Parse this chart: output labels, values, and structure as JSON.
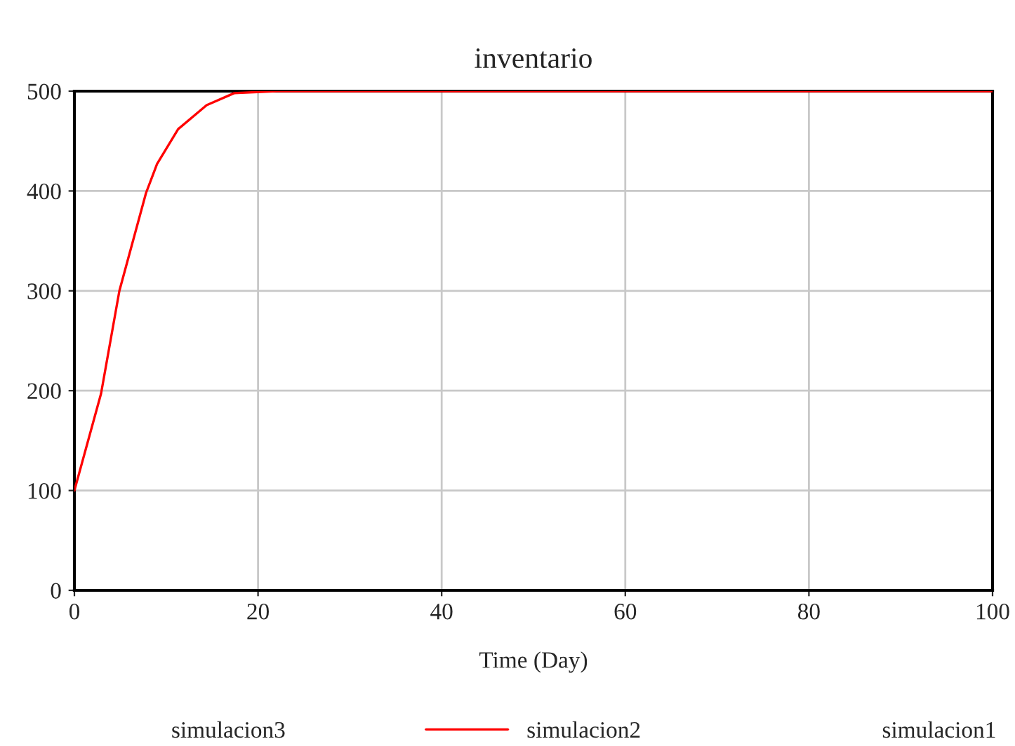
{
  "chart_data": {
    "type": "line",
    "title": "inventario",
    "xlabel": "Time (Day)",
    "x": [
      0,
      2.9,
      4.9,
      7.8,
      9,
      11.3,
      14.4,
      17.4,
      22,
      40,
      60,
      80,
      100
    ],
    "series": [
      {
        "name": "simulacion3",
        "values": [
          null,
          null,
          null,
          null,
          null,
          null,
          null,
          null,
          null,
          null,
          null,
          null,
          null
        ]
      },
      {
        "name": "simulacion2",
        "color": "#ff0000",
        "values": [
          100,
          197,
          300,
          398,
          427,
          462,
          486,
          498,
          500,
          500,
          500,
          500,
          500
        ]
      },
      {
        "name": "simulacion1",
        "values": [
          null,
          null,
          null,
          null,
          null,
          null,
          null,
          null,
          null,
          null,
          null,
          null,
          null
        ]
      }
    ],
    "xlim": [
      0,
      100
    ],
    "xticks": [
      0,
      20,
      40,
      60,
      80,
      100
    ],
    "ylim": [
      0,
      500
    ],
    "yticks": [
      0,
      100,
      200,
      300,
      400,
      500
    ],
    "grid": true,
    "legend": "bottom",
    "marker": "none",
    "line_style": "solid"
  }
}
